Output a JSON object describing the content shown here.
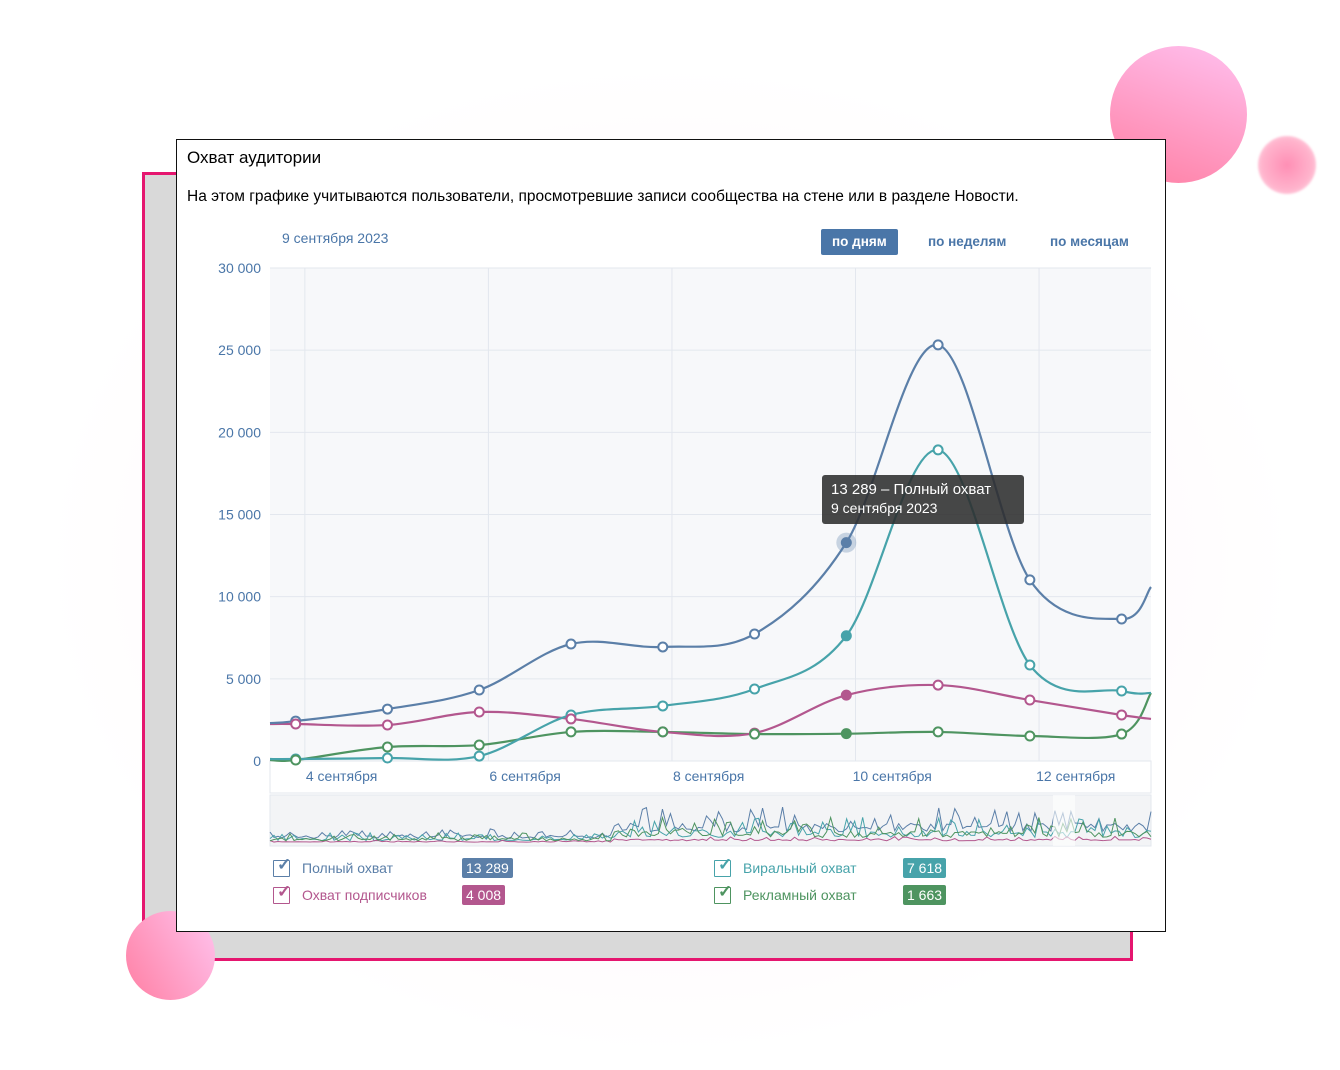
{
  "card": {
    "title": "Охват аудитории",
    "description": "На этом графике учитываются пользователи, просмотревшие записи сообщества на стене или в разделе Новости.",
    "selected_date": "9 сентября 2023",
    "periods": [
      {
        "label": "по дням",
        "active": true
      },
      {
        "label": "по неделям",
        "active": false
      },
      {
        "label": "по месяцам",
        "active": false
      }
    ]
  },
  "tooltip": {
    "line1": "13 289 – Полный охват",
    "line2": "9 сентября 2023"
  },
  "legend": [
    {
      "label": "Полный охват",
      "value": "13 289",
      "color": "#5b7fa8",
      "checked": true
    },
    {
      "label": "Охват подписчиков",
      "value": "4 008",
      "color": "#b3578e",
      "checked": true
    },
    {
      "label": "Виральный охват",
      "value": "7 618",
      "color": "#47a3aa",
      "checked": true
    },
    {
      "label": "Рекламный охват",
      "value": "1 663",
      "color": "#4e9460",
      "checked": true
    }
  ],
  "chart_data": {
    "type": "line",
    "title": "Охват аудитории",
    "xlabel": "",
    "ylabel": "",
    "ylim": [
      0,
      30000
    ],
    "xlim": [
      2.72,
      12.32
    ],
    "yticks": [
      "0",
      "5 000",
      "10 000",
      "15 000",
      "20 000",
      "25 000",
      "30 000"
    ],
    "ytick_values": [
      0,
      5000,
      10000,
      15000,
      20000,
      25000,
      30000
    ],
    "xticks": [
      {
        "day": 3.5,
        "label": "4 сентября"
      },
      {
        "day": 5.5,
        "label": "6 сентября"
      },
      {
        "day": 7.5,
        "label": "8 сентября"
      },
      {
        "day": 9.5,
        "label": "10 сентября"
      },
      {
        "day": 11.5,
        "label": "12 сентября"
      }
    ],
    "grid": true,
    "highlight_day": 9,
    "x": [
      2.72,
      3,
      4,
      5,
      6,
      7,
      8,
      9,
      10,
      11,
      12,
      12.32
    ],
    "series": [
      {
        "name": "Полный охват",
        "color": "#5b7fa8",
        "values": [
          2310,
          2430,
          3160,
          4320,
          7120,
          6940,
          7730,
          13289,
          25320,
          11020,
          8640,
          10590
        ]
      },
      {
        "name": "Виральный охват",
        "color": "#47a3aa",
        "values": [
          120,
          120,
          180,
          300,
          2800,
          3350,
          4380,
          7618,
          18930,
          5840,
          4260,
          4140
        ]
      },
      {
        "name": "Охват подписчиков",
        "color": "#b3578e",
        "values": [
          2250,
          2250,
          2190,
          2980,
          2560,
          1770,
          1700,
          4008,
          4620,
          3710,
          2800,
          2560
        ]
      },
      {
        "name": "Рекламный охват",
        "color": "#4e9460",
        "values": [
          60,
          60,
          850,
          970,
          1770,
          1770,
          1640,
          1663,
          1770,
          1520,
          1640,
          4140
        ]
      }
    ]
  }
}
